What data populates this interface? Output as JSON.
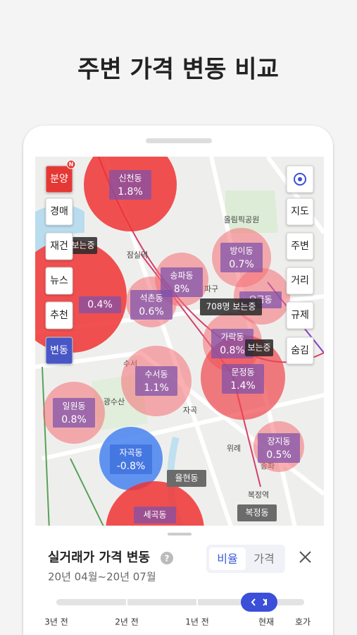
{
  "header": {
    "title": "주변 가격 변동 비교"
  },
  "left_menu": [
    {
      "label": "분양",
      "badge": "N"
    },
    {
      "label": "경매"
    },
    {
      "label": "재건"
    },
    {
      "label": "뉴스"
    },
    {
      "label": "추천"
    },
    {
      "label": "변동"
    }
  ],
  "right_menu": [
    "지도",
    "주변",
    "거리",
    "규제",
    "숨김"
  ],
  "areas": [
    {
      "name": "신천동",
      "change": "1.8%"
    },
    {
      "name": "방이동",
      "change": "0.7%"
    },
    {
      "name": "송파동",
      "change": "8%"
    },
    {
      "change": "0.4%"
    },
    {
      "name": "석촌동",
      "change": "0.6%"
    },
    {
      "name": "오금동"
    },
    {
      "name": "가락동",
      "change": "0.8%"
    },
    {
      "name": "문정동",
      "change": "1.4%"
    },
    {
      "name": "수서동",
      "change": "1.1%"
    },
    {
      "name": "일원동",
      "change": "0.8%"
    },
    {
      "name": "장지동",
      "change": "0.5%"
    },
    {
      "name": "자곡동",
      "change": "-0.8%"
    },
    {
      "name": "세곡동"
    }
  ],
  "unrated_areas": [
    "율현동",
    "복정동"
  ],
  "viewer_tags": [
    "708명 보는중",
    "보는중",
    "보는중"
  ],
  "places": [
    "잠실역",
    "올림픽공원",
    "파구",
    "수서",
    "광수산",
    "자곡",
    "위례",
    "복정역",
    "송파"
  ],
  "panel": {
    "title": "실거래가 가격 변동",
    "period": "20년 04월~20년 07월",
    "toggle": [
      "비율",
      "가격"
    ],
    "timeline": [
      "3년 전",
      "2년 전",
      "1년 전",
      "현재",
      "호가"
    ]
  }
}
